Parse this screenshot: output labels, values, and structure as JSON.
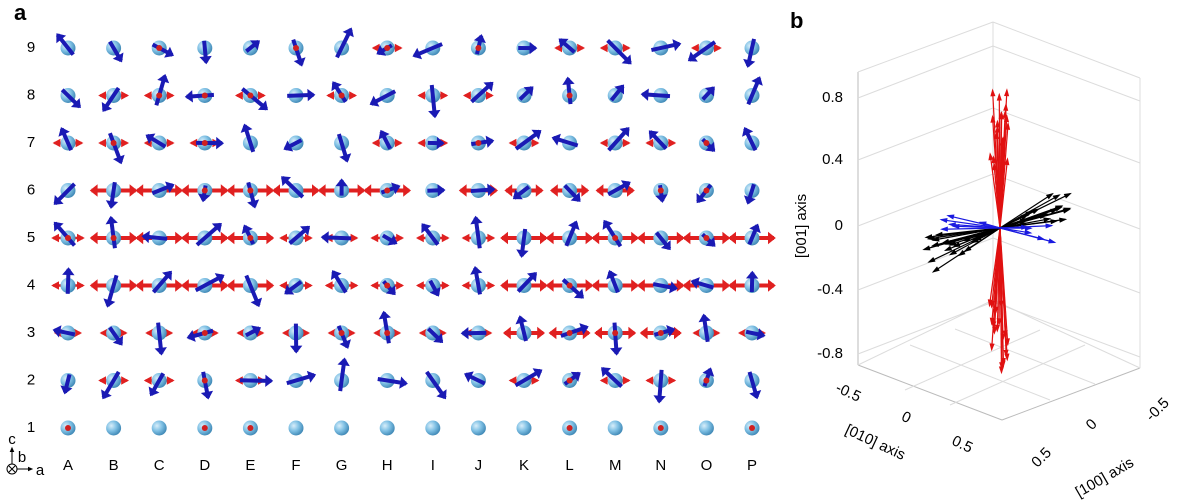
{
  "panel_a": {
    "label": "a",
    "rows": [
      "1",
      "2",
      "3",
      "4",
      "5",
      "6",
      "7",
      "8",
      "9"
    ],
    "columns": [
      "A",
      "B",
      "C",
      "D",
      "E",
      "F",
      "G",
      "H",
      "I",
      "J",
      "K",
      "L",
      "M",
      "N",
      "O",
      "P"
    ],
    "axes": [
      "c",
      "b",
      "a"
    ]
  },
  "panel_b": {
    "label": "b",
    "z_ticks": [
      "0.8",
      "0.4",
      "0",
      "-0.4",
      "-0.8"
    ],
    "z_label": "[001] axis",
    "y_ticks": [
      "-0.5",
      "0",
      "0.5"
    ],
    "y_label": "[010] axis",
    "x_ticks": [
      "-0.5",
      "0",
      "0.5"
    ],
    "x_label": "[100] axis"
  }
}
